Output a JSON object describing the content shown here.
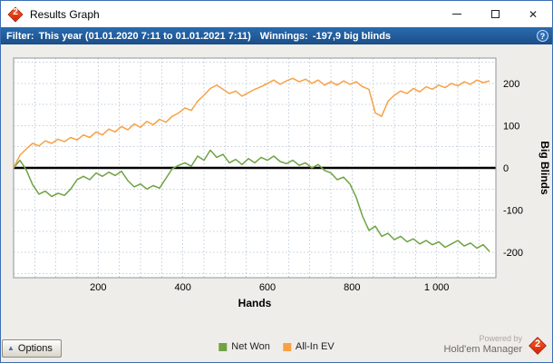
{
  "window": {
    "title": "Results Graph",
    "app_badge": "2"
  },
  "filter_bar": {
    "filter_label": "Filter:",
    "filter_value": "This year (01.01.2020 7:11 to 01.01.2021 7:11)",
    "winnings_label": "Winnings:",
    "winnings_value": "-197,9 big blinds",
    "help_icon": "?"
  },
  "chart_data": {
    "type": "line",
    "title": "",
    "xlabel": "Hands",
    "ylabel": "Big Blinds",
    "xlim": [
      0,
      1140
    ],
    "ylim": [
      -260,
      260
    ],
    "grid": "dotted",
    "grid_step_x": 50,
    "grid_step_y": 50,
    "grid_color": "#c3cedb",
    "zero_line_color": "#000000",
    "plot_border_color": "#8e959c",
    "legend_position": "bottom-center",
    "x_ticks": [
      200,
      400,
      600,
      800,
      1000
    ],
    "x_tick_labels": [
      "200",
      "400",
      "600",
      "800",
      "1 000"
    ],
    "y_ticks": [
      200,
      100,
      0,
      -100,
      -200
    ],
    "y_tick_labels": [
      "200",
      "100",
      "0",
      "-100",
      "-200"
    ],
    "x": [
      0,
      15,
      30,
      45,
      60,
      75,
      90,
      105,
      120,
      135,
      150,
      165,
      180,
      195,
      210,
      225,
      240,
      255,
      270,
      285,
      300,
      315,
      330,
      345,
      360,
      375,
      390,
      405,
      420,
      435,
      450,
      465,
      480,
      495,
      510,
      525,
      540,
      555,
      570,
      585,
      600,
      615,
      630,
      645,
      660,
      675,
      690,
      705,
      720,
      735,
      750,
      765,
      780,
      795,
      810,
      825,
      840,
      855,
      870,
      885,
      900,
      915,
      930,
      945,
      960,
      975,
      990,
      1005,
      1020,
      1035,
      1050,
      1065,
      1080,
      1095,
      1110,
      1125
    ],
    "series": [
      {
        "name": "Net Won",
        "color": "#6fa243",
        "values": [
          0,
          18,
          -5,
          -40,
          -62,
          -55,
          -68,
          -60,
          -65,
          -50,
          -28,
          -20,
          -28,
          -12,
          -20,
          -10,
          -18,
          -8,
          -30,
          -45,
          -38,
          -50,
          -42,
          -48,
          -25,
          -2,
          6,
          12,
          4,
          28,
          18,
          42,
          25,
          32,
          12,
          20,
          8,
          22,
          12,
          25,
          18,
          28,
          15,
          10,
          18,
          6,
          12,
          0,
          8,
          -6,
          -12,
          -28,
          -22,
          -38,
          -70,
          -115,
          -148,
          -138,
          -162,
          -155,
          -170,
          -162,
          -175,
          -168,
          -180,
          -172,
          -182,
          -175,
          -188,
          -180,
          -172,
          -185,
          -178,
          -190,
          -182,
          -198
        ]
      },
      {
        "name": "All-In EV",
        "color": "#f7a145",
        "values": [
          0,
          30,
          45,
          58,
          52,
          64,
          58,
          68,
          62,
          72,
          66,
          78,
          72,
          85,
          78,
          92,
          85,
          98,
          90,
          104,
          96,
          110,
          102,
          115,
          108,
          122,
          130,
          142,
          136,
          158,
          172,
          188,
          196,
          186,
          176,
          182,
          170,
          178,
          186,
          192,
          200,
          208,
          198,
          206,
          212,
          204,
          210,
          200,
          208,
          196,
          204,
          196,
          206,
          198,
          204,
          192,
          186,
          130,
          122,
          158,
          172,
          182,
          176,
          188,
          180,
          192,
          186,
          196,
          190,
          200,
          194,
          204,
          198,
          208,
          202,
          206
        ]
      }
    ]
  },
  "footer": {
    "options_label": "Options",
    "powered_by": "Powered by",
    "brand": "Hold'em Manager",
    "brand_badge": "2"
  }
}
